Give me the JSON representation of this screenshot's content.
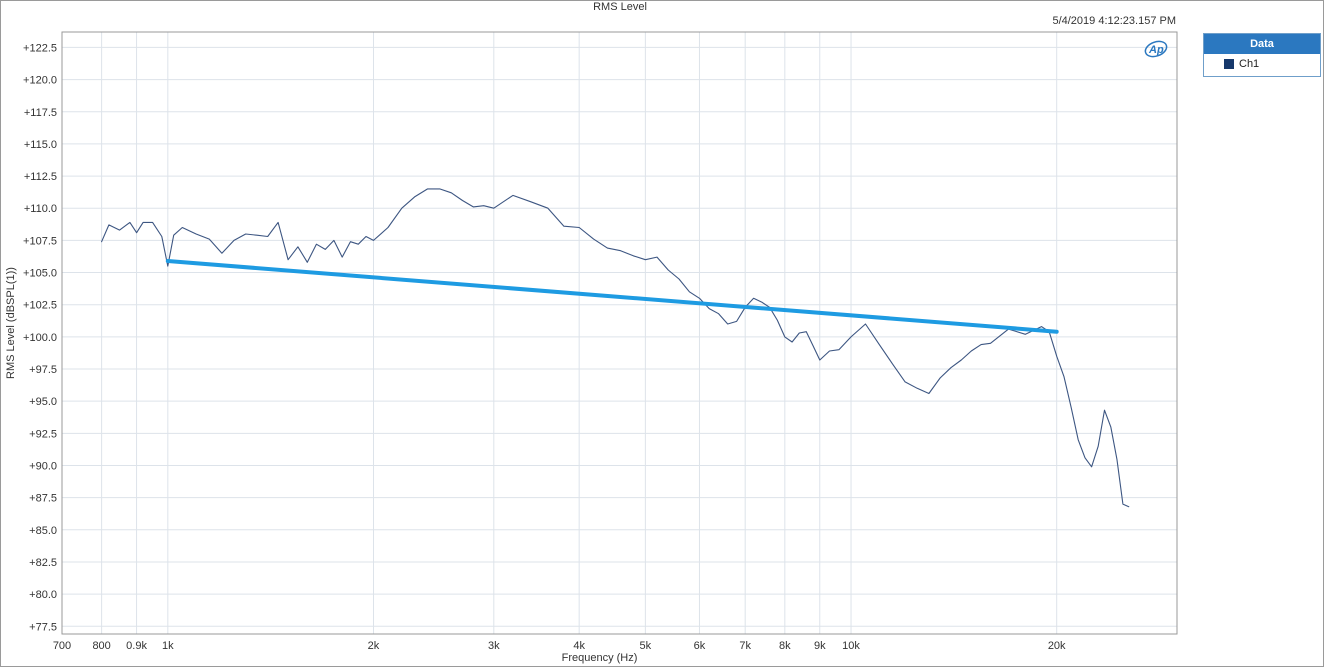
{
  "chart_data": {
    "type": "line",
    "title": "RMS Level",
    "timestamp": "5/4/2019 4:12:23.157 PM",
    "xlabel": "Frequency (Hz)",
    "ylabel": "RMS Level (dBSPL(1))",
    "xscale": "log",
    "xlim": [
      700,
      30000
    ],
    "ylim": [
      76.9,
      123.7
    ],
    "x_ticks": [
      {
        "value": 700,
        "label": "700"
      },
      {
        "value": 800,
        "label": "800"
      },
      {
        "value": 900,
        "label": "0.9k"
      },
      {
        "value": 1000,
        "label": "1k"
      },
      {
        "value": 2000,
        "label": "2k"
      },
      {
        "value": 3000,
        "label": "3k"
      },
      {
        "value": 4000,
        "label": "4k"
      },
      {
        "value": 5000,
        "label": "5k"
      },
      {
        "value": 6000,
        "label": "6k"
      },
      {
        "value": 7000,
        "label": "7k"
      },
      {
        "value": 8000,
        "label": "8k"
      },
      {
        "value": 9000,
        "label": "9k"
      },
      {
        "value": 10000,
        "label": "10k"
      },
      {
        "value": 20000,
        "label": "20k"
      }
    ],
    "y_ticks": [
      "+77.5",
      "+80.0",
      "+82.5",
      "+85.0",
      "+87.5",
      "+90.0",
      "+92.5",
      "+95.0",
      "+97.5",
      "+100.0",
      "+102.5",
      "+105.0",
      "+107.5",
      "+110.0",
      "+112.5",
      "+115.0",
      "+117.5",
      "+120.0",
      "+122.5"
    ],
    "y_tick_values": [
      77.5,
      80,
      82.5,
      85,
      87.5,
      90,
      92.5,
      95,
      97.5,
      100,
      102.5,
      105,
      107.5,
      110,
      112.5,
      115,
      117.5,
      120,
      122.5
    ],
    "grid": true,
    "legend_title": "Data",
    "legend_position": "right",
    "series": [
      {
        "name": "Ch1",
        "color": "#3d5682",
        "x": [
          800,
          820,
          850,
          880,
          900,
          920,
          950,
          980,
          1000,
          1020,
          1050,
          1100,
          1150,
          1200,
          1250,
          1300,
          1350,
          1400,
          1450,
          1500,
          1550,
          1600,
          1650,
          1700,
          1750,
          1800,
          1850,
          1900,
          1950,
          2000,
          2100,
          2200,
          2300,
          2400,
          2500,
          2600,
          2700,
          2800,
          2900,
          3000,
          3200,
          3400,
          3600,
          3800,
          4000,
          4200,
          4400,
          4600,
          4800,
          5000,
          5200,
          5400,
          5600,
          5800,
          6000,
          6200,
          6400,
          6600,
          6800,
          7000,
          7200,
          7400,
          7600,
          7800,
          8000,
          8200,
          8400,
          8600,
          8800,
          9000,
          9300,
          9600,
          10000,
          10500,
          11000,
          11500,
          12000,
          12500,
          13000,
          13500,
          14000,
          14500,
          15000,
          15500,
          16000,
          17000,
          18000,
          19000,
          19500,
          20000,
          20500,
          21000,
          21500,
          22000,
          22500,
          23000,
          23500,
          24000,
          24500,
          25000,
          25500
        ],
        "y": [
          107.4,
          108.7,
          108.3,
          108.9,
          108.1,
          108.9,
          108.9,
          107.8,
          105.5,
          107.9,
          108.5,
          108.0,
          107.6,
          106.5,
          107.5,
          108.0,
          107.9,
          107.8,
          108.9,
          106.0,
          107.0,
          105.8,
          107.2,
          106.8,
          107.5,
          106.2,
          107.4,
          107.2,
          107.8,
          107.5,
          108.5,
          110.0,
          110.9,
          111.5,
          111.5,
          111.2,
          110.6,
          110.1,
          110.2,
          110.0,
          111.0,
          110.5,
          110.0,
          108.6,
          108.5,
          107.6,
          106.9,
          106.7,
          106.3,
          106.0,
          106.2,
          105.2,
          104.5,
          103.5,
          103.0,
          102.2,
          101.8,
          101.0,
          101.2,
          102.3,
          103.0,
          102.7,
          102.3,
          101.3,
          100.0,
          99.6,
          100.3,
          100.4,
          99.3,
          98.2,
          98.9,
          99.0,
          100.0,
          101.0,
          99.4,
          97.9,
          96.5,
          96.0,
          95.6,
          96.8,
          97.6,
          98.2,
          98.9,
          99.4,
          99.5,
          100.6,
          100.2,
          100.8,
          100.4,
          98.5,
          96.9,
          94.5,
          92.0,
          90.6,
          89.9,
          91.5,
          94.3,
          93.0,
          90.5,
          87.0,
          86.8
        ]
      },
      {
        "name": "",
        "color": "#1e9be2",
        "x": [
          1000,
          20000
        ],
        "y": [
          105.9,
          100.4
        ]
      }
    ]
  },
  "legend": {
    "title": "Data",
    "items": [
      {
        "label": "Ch1",
        "color": "#16386b"
      }
    ]
  },
  "logo": "ap-logo"
}
